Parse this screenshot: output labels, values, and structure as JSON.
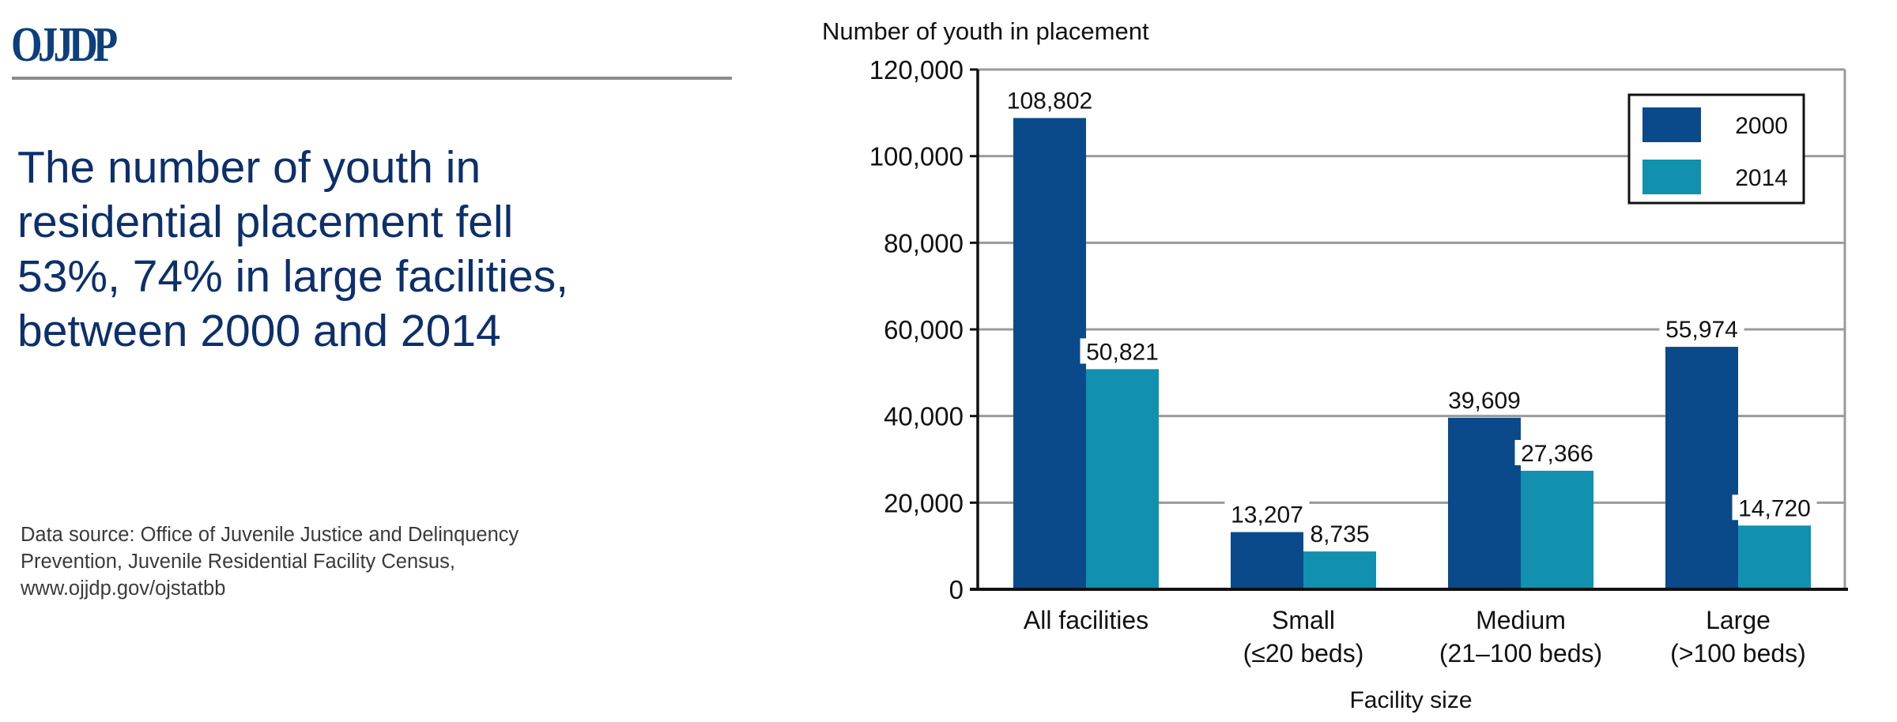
{
  "header": {
    "logo_text": "OJJDP",
    "headline_lines": [
      "The number of youth in",
      "residential placement fell",
      "53%, 74% in large facilities,",
      "between 2000 and 2014"
    ],
    "source_lines": [
      "Data source: Office of Juvenile Justice and Delinquency",
      "Prevention, Juvenile Residential Facility Census,",
      "www.ojjdp.gov/ojstatbb"
    ]
  },
  "chart_data": {
    "type": "bar",
    "title": "",
    "ylabel": "Number of youth in placement",
    "xlabel": "Facility size",
    "categories": [
      [
        "All facilities"
      ],
      [
        "Small",
        "(≤20 beds)"
      ],
      [
        "Medium",
        "(21–100 beds)"
      ],
      [
        "Large",
        "(>100 beds)"
      ]
    ],
    "series": [
      {
        "name": "2000",
        "color": "#0a4a8a",
        "values": [
          108802,
          13207,
          39609,
          55974
        ],
        "labels": [
          "108,802",
          "13,207",
          "39,609",
          "55,974"
        ]
      },
      {
        "name": "2014",
        "color": "#1190b0",
        "values": [
          50821,
          8735,
          27366,
          14720
        ],
        "labels": [
          "50,821",
          "8,735",
          "27,366",
          "14,720"
        ]
      }
    ],
    "ylim": [
      0,
      120000
    ],
    "yticks": [
      0,
      20000,
      40000,
      60000,
      80000,
      100000,
      120000
    ],
    "ytick_labels": [
      "0",
      "20,000",
      "40,000",
      "60,000",
      "80,000",
      "100,000",
      "120,000"
    ],
    "grid": true,
    "legend_position": "top-right"
  }
}
